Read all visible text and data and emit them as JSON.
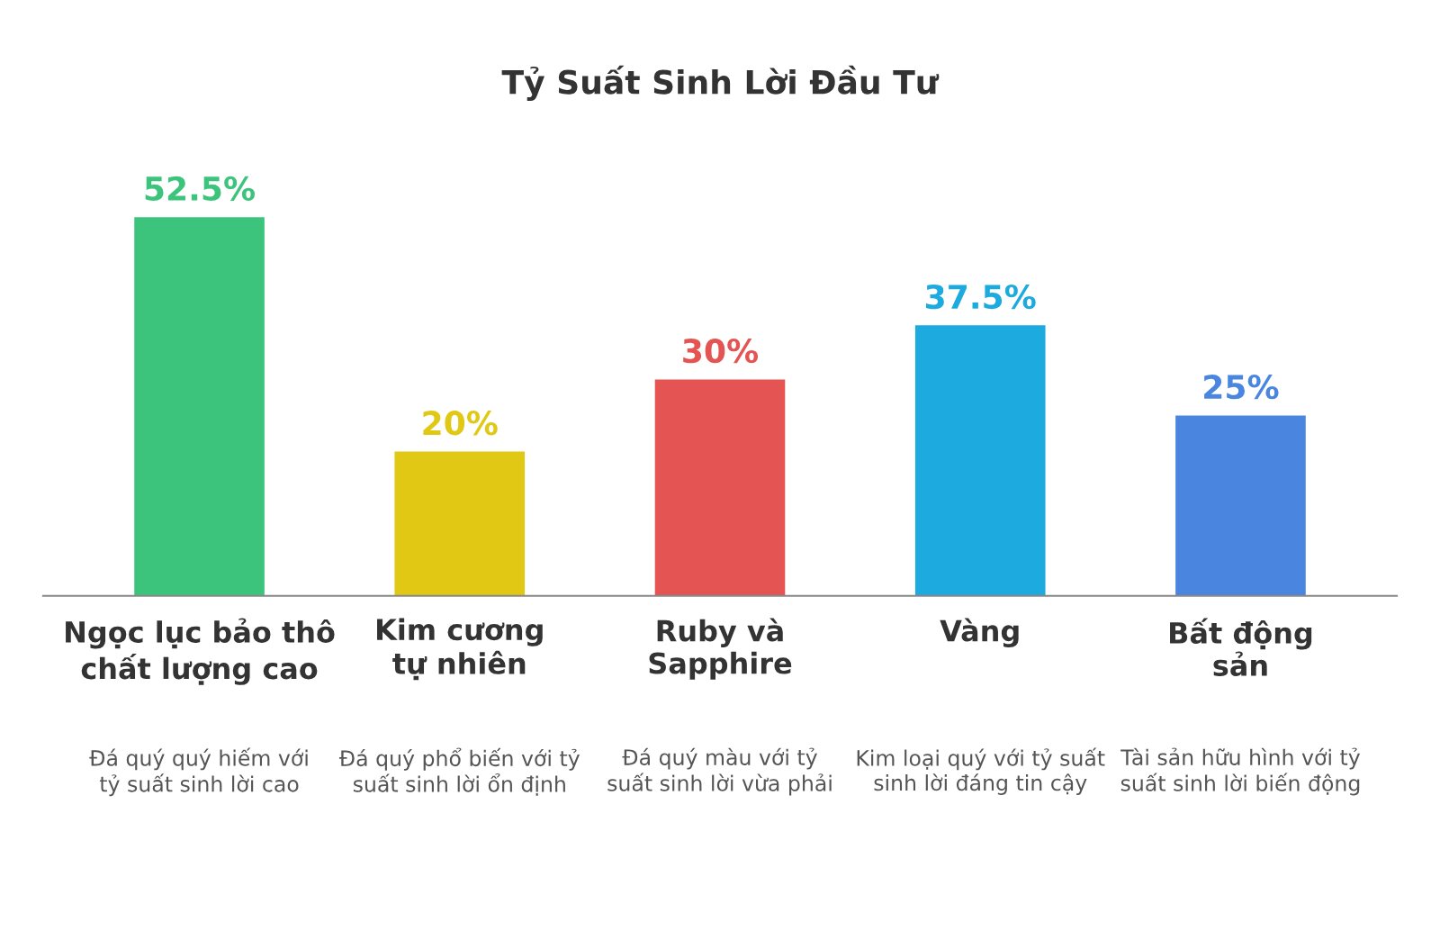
{
  "chart_data": {
    "type": "bar",
    "title": "Tỷ Suất Sinh Lời Đầu Tư",
    "categories": [
      "Ngọc lục bảo thô chất lượng cao",
      "Kim cương tự nhiên",
      "Ruby và Sapphire",
      "Vàng",
      "Bất động sản"
    ],
    "values": [
      52.5,
      20,
      30,
      37.5,
      25
    ],
    "colors": [
      "#3cc47c",
      "#e0c814",
      "#e35452",
      "#1daadf",
      "#4a86e0"
    ],
    "value_labels": [
      "52.5%",
      "20%",
      "30%",
      "37.5%",
      "25%"
    ],
    "annotations": [
      "Đá quý quý hiếm với tỷ suất sinh lời cao",
      "Đá quý phổ biến với tỷ suất sinh lời ổn định",
      "Đá quý màu với tỷ suất sinh lời vừa phải",
      "Kim loại quý với tỷ suất sinh lời đáng tin cậy",
      "Tài sản hữu hình với tỷ suất sinh lời biến động"
    ],
    "data_labels": false
  }
}
